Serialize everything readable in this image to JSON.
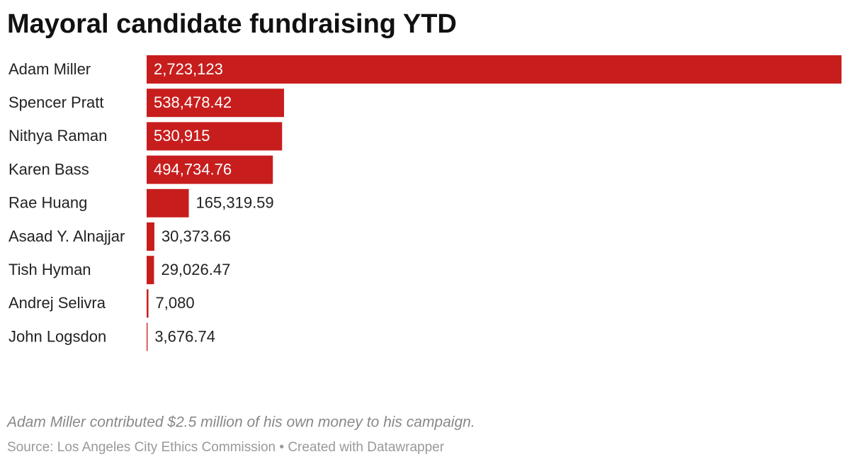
{
  "chart_data": {
    "type": "bar",
    "orientation": "horizontal",
    "title": "Mayoral candidate fundraising YTD",
    "categories": [
      "Adam Miller",
      "Spencer Pratt",
      "Nithya Raman",
      "Karen Bass",
      "Rae Huang",
      "Asaad Y. Alnajjar",
      "Tish Hyman",
      "Andrej Selivra",
      "John Logsdon"
    ],
    "values": [
      2723123,
      538478.42,
      530915,
      494734.76,
      165319.59,
      30373.66,
      29026.47,
      7080,
      3676.74
    ],
    "value_labels": [
      "2,723,123",
      "538,478.42",
      "530,915",
      "494,734.76",
      "165,319.59",
      "30,373.66",
      "29,026.47",
      "7,080",
      "3,676.74"
    ],
    "color": "#c71e1d",
    "note": "Adam Miller contributed $2.5 million of his own money to his campaign.",
    "source": "Source: Los Angeles City Ethics Commission",
    "credit": "Created with Datawrapper"
  }
}
